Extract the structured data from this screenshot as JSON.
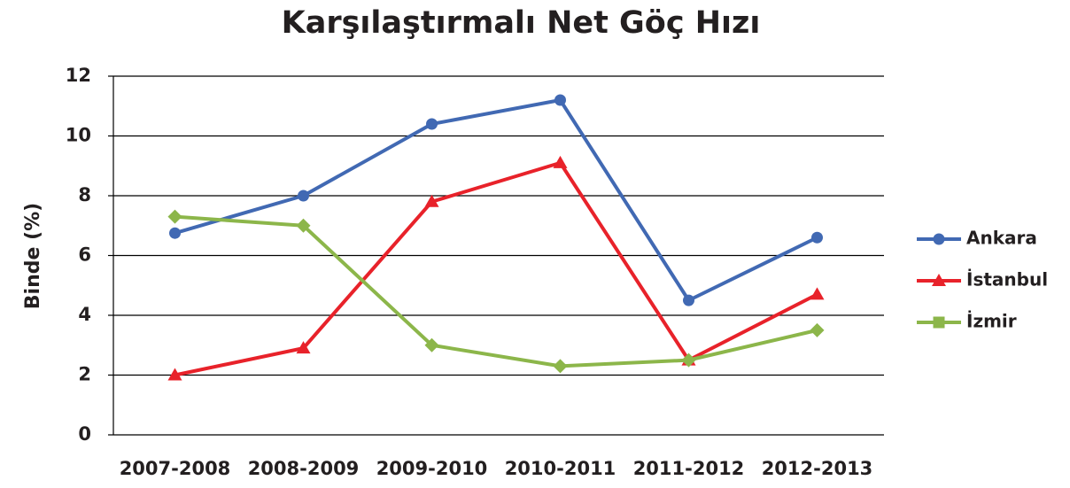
{
  "chart_data": {
    "type": "line",
    "title": "Karşılaştırmalı Net Göç Hızı",
    "y_label": "Binde (%)",
    "categories": [
      "2007-2008",
      "2008-2009",
      "2009-2010",
      "2010-2011",
      "2011-2012",
      "2012-2013"
    ],
    "series": [
      {
        "name": "Ankara",
        "color": "#4169b3",
        "marker": "circle",
        "values": [
          6.75,
          8.0,
          10.4,
          11.2,
          4.5,
          6.6
        ]
      },
      {
        "name": "İstanbul",
        "color": "#e8222a",
        "marker": "triangle",
        "values": [
          2.0,
          2.9,
          7.8,
          9.1,
          2.5,
          4.7
        ]
      },
      {
        "name": "İzmir",
        "color": "#8cb64a",
        "marker": "diamond",
        "values": [
          7.3,
          7.0,
          3.0,
          2.3,
          2.5,
          3.5
        ]
      }
    ],
    "ylim": [
      0,
      12
    ],
    "yticks": [
      0,
      2,
      4,
      6,
      8,
      10,
      12
    ],
    "grid": true,
    "legend": "right"
  }
}
